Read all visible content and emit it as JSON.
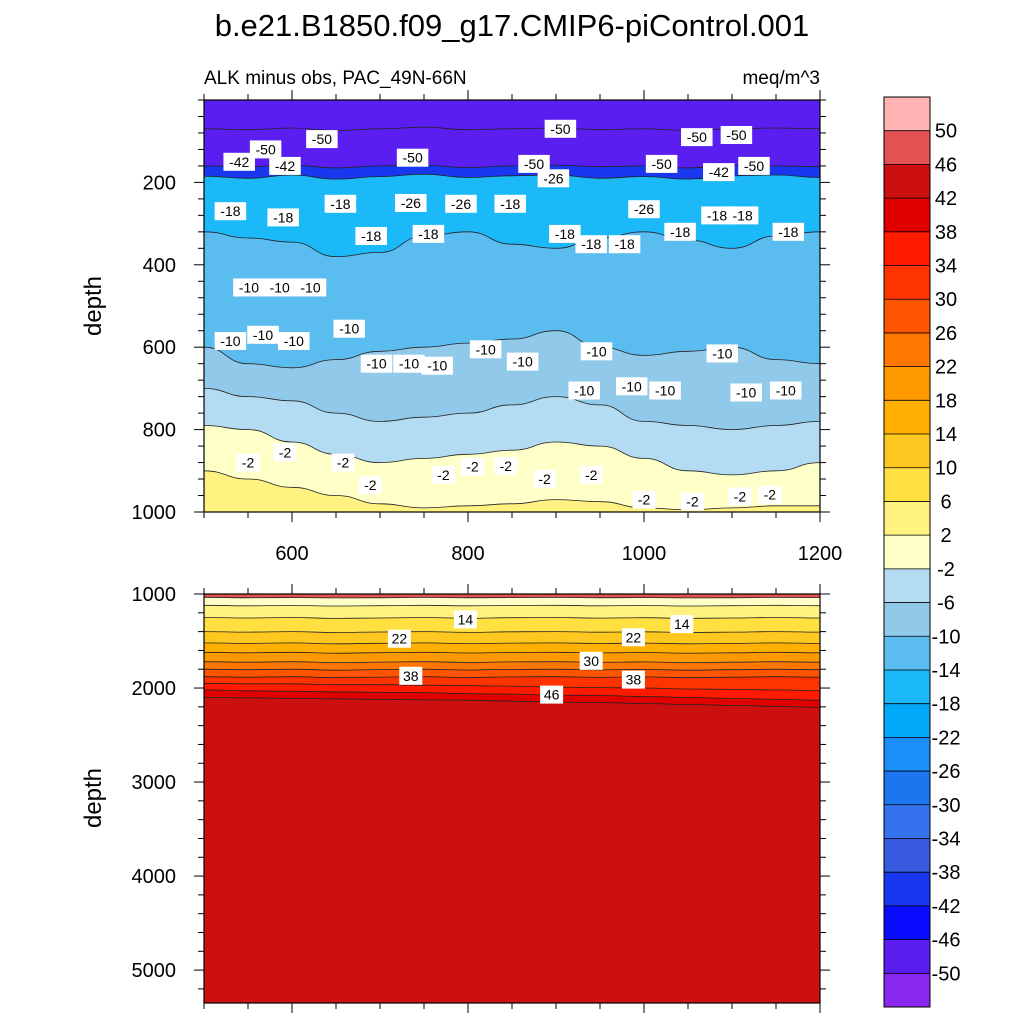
{
  "figure": {
    "title": "b.e21.B1850.f09_g17.CMIP6-piControl.001",
    "left_subtitle": "ALK minus obs, PAC_49N-66N",
    "right_subtitle": "meq/m^3"
  },
  "colorbar": {
    "levels": [
      "50",
      "46",
      "42",
      "38",
      "34",
      "30",
      "26",
      "22",
      "18",
      "14",
      "10",
      "6",
      "2",
      "-2",
      "-6",
      "-10",
      "-14",
      "-18",
      "-22",
      "-26",
      "-30",
      "-34",
      "-38",
      "-42",
      "-46",
      "-50"
    ],
    "colors": [
      "#ffb3b3",
      "#e35252",
      "#cc1010",
      "#e00000",
      "#ff1a00",
      "#ff3300",
      "#ff5500",
      "#ff7700",
      "#ff9900",
      "#ffb000",
      "#ffc820",
      "#ffe040",
      "#fff280",
      "#ffffc8",
      "#b3dcf2",
      "#91c9ea",
      "#5bbcf0",
      "#1cb9f8",
      "#00a8f7",
      "#1a8ff8",
      "#1e75f0",
      "#3573ee",
      "#375ae0",
      "#1a37f0",
      "#0a0aff",
      "#5a1ef0",
      "#8a28f0"
    ]
  },
  "chart_data": [
    {
      "type": "contour",
      "panel": "upper",
      "x": [
        500,
        550,
        600,
        650,
        700,
        750,
        800,
        850,
        900,
        950,
        1000,
        1050,
        1100,
        1150,
        1200
      ],
      "xlim": [
        500,
        1200
      ],
      "ylim": [
        1000,
        0
      ],
      "ylabel": "depth",
      "x_ticks": [
        "600",
        "800",
        "1000",
        "1200"
      ],
      "y_ticks": [
        "200",
        "400",
        "600",
        "800",
        "1000"
      ],
      "contour_boundaries": [
        {
          "level": -46,
          "depth": [
            70,
            72,
            68,
            74,
            70,
            66,
            72,
            70,
            68,
            72,
            70,
            74,
            70,
            68,
            70
          ]
        },
        {
          "level": -50,
          "depth": [
            160,
            162,
            158,
            165,
            160,
            158,
            164,
            160,
            158,
            162,
            160,
            165,
            158,
            160,
            162
          ]
        },
        {
          "level": -42,
          "depth": [
            185,
            190,
            182,
            192,
            186,
            180,
            188,
            184,
            182,
            190,
            186,
            192,
            184,
            182,
            188
          ]
        },
        {
          "level": -18,
          "depth": [
            320,
            335,
            345,
            380,
            370,
            330,
            320,
            350,
            360,
            335,
            320,
            340,
            360,
            330,
            320
          ]
        },
        {
          "level": -10,
          "depth": [
            600,
            640,
            650,
            630,
            610,
            600,
            590,
            580,
            560,
            600,
            620,
            610,
            600,
            630,
            640
          ]
        },
        {
          "level": -6,
          "depth": [
            700,
            720,
            730,
            760,
            780,
            770,
            760,
            740,
            720,
            740,
            780,
            790,
            800,
            790,
            780
          ]
        },
        {
          "level": -2,
          "depth": [
            790,
            800,
            830,
            860,
            880,
            870,
            860,
            850,
            830,
            840,
            870,
            900,
            910,
            900,
            880
          ]
        },
        {
          "level": 2,
          "depth": [
            900,
            920,
            940,
            960,
            980,
            990,
            985,
            980,
            970,
            975,
            990,
            995,
            990,
            985,
            985
          ]
        }
      ],
      "contour_labels": [
        {
          "text": "-50",
          "x": 570,
          "y": 120
        },
        {
          "text": "-50",
          "x": 634,
          "y": 95
        },
        {
          "text": "-50",
          "x": 737,
          "y": 140
        },
        {
          "text": "-50",
          "x": 875,
          "y": 155
        },
        {
          "text": "-50",
          "x": 905,
          "y": 70
        },
        {
          "text": "-50",
          "x": 1020,
          "y": 155
        },
        {
          "text": "-50",
          "x": 1060,
          "y": 90
        },
        {
          "text": "-50",
          "x": 1105,
          "y": 85
        },
        {
          "text": "-50",
          "x": 1125,
          "y": 160
        },
        {
          "text": "-42",
          "x": 540,
          "y": 150
        },
        {
          "text": "-42",
          "x": 592,
          "y": 160
        },
        {
          "text": "-42",
          "x": 1085,
          "y": 175
        },
        {
          "text": "-26",
          "x": 735,
          "y": 250
        },
        {
          "text": "-26",
          "x": 792,
          "y": 252
        },
        {
          "text": "-26",
          "x": 897,
          "y": 190
        },
        {
          "text": "-26",
          "x": 1000,
          "y": 265
        },
        {
          "text": "-18",
          "x": 530,
          "y": 270
        },
        {
          "text": "-18",
          "x": 590,
          "y": 285
        },
        {
          "text": "-18",
          "x": 655,
          "y": 252
        },
        {
          "text": "-18",
          "x": 690,
          "y": 330
        },
        {
          "text": "-18",
          "x": 755,
          "y": 325
        },
        {
          "text": "-18",
          "x": 848,
          "y": 252
        },
        {
          "text": "-18",
          "x": 910,
          "y": 325
        },
        {
          "text": "-18",
          "x": 940,
          "y": 350
        },
        {
          "text": "-18",
          "x": 978,
          "y": 350
        },
        {
          "text": "-18",
          "x": 1041,
          "y": 320
        },
        {
          "text": "-18",
          "x": 1083,
          "y": 280
        },
        {
          "text": "-18",
          "x": 1112,
          "y": 280
        },
        {
          "text": "-18",
          "x": 1164,
          "y": 320
        },
        {
          "text": "-10",
          "x": 551,
          "y": 455
        },
        {
          "text": "-10",
          "x": 586,
          "y": 455
        },
        {
          "text": "-10",
          "x": 621,
          "y": 455
        },
        {
          "text": "-10",
          "x": 530,
          "y": 585
        },
        {
          "text": "-10",
          "x": 567,
          "y": 570
        },
        {
          "text": "-10",
          "x": 602,
          "y": 585
        },
        {
          "text": "-10",
          "x": 665,
          "y": 555
        },
        {
          "text": "-10",
          "x": 696,
          "y": 640
        },
        {
          "text": "-10",
          "x": 733,
          "y": 640
        },
        {
          "text": "-10",
          "x": 765,
          "y": 645
        },
        {
          "text": "-10",
          "x": 820,
          "y": 605
        },
        {
          "text": "-10",
          "x": 862,
          "y": 635
        },
        {
          "text": "-10",
          "x": 932,
          "y": 705
        },
        {
          "text": "-10",
          "x": 946,
          "y": 610
        },
        {
          "text": "-10",
          "x": 986,
          "y": 695
        },
        {
          "text": "-10",
          "x": 1024,
          "y": 705
        },
        {
          "text": "-10",
          "x": 1089,
          "y": 615
        },
        {
          "text": "-10",
          "x": 1116,
          "y": 710
        },
        {
          "text": "-10",
          "x": 1161,
          "y": 705
        },
        {
          "text": "-2",
          "x": 550,
          "y": 880
        },
        {
          "text": "-2",
          "x": 592,
          "y": 855
        },
        {
          "text": "-2",
          "x": 658,
          "y": 880
        },
        {
          "text": "-2",
          "x": 689,
          "y": 935
        },
        {
          "text": "-2",
          "x": 772,
          "y": 910
        },
        {
          "text": "-2",
          "x": 805,
          "y": 890
        },
        {
          "text": "-2",
          "x": 843,
          "y": 888
        },
        {
          "text": "-2",
          "x": 887,
          "y": 920
        },
        {
          "text": "-2",
          "x": 940,
          "y": 910
        },
        {
          "text": "-2",
          "x": 1000,
          "y": 970
        },
        {
          "text": "-2",
          "x": 1055,
          "y": 975
        },
        {
          "text": "-2",
          "x": 1109,
          "y": 962
        },
        {
          "text": "-2",
          "x": 1143,
          "y": 958
        }
      ]
    },
    {
      "type": "contour",
      "panel": "lower",
      "x": [
        500,
        550,
        600,
        650,
        700,
        750,
        800,
        850,
        900,
        950,
        1000,
        1050,
        1100,
        1150,
        1200
      ],
      "xlim": [
        500,
        1200
      ],
      "ylim": [
        5350,
        1000
      ],
      "ylabel": "depth",
      "y_ticks": [
        "1000",
        "2000",
        "3000",
        "4000",
        "5000"
      ],
      "contour_boundaries": [
        {
          "level": 2,
          "depth": [
            1035,
            1040,
            1038,
            1042,
            1040,
            1036,
            1040,
            1038,
            1036,
            1040,
            1038,
            1042,
            1040,
            1036,
            1038
          ]
        },
        {
          "level": 6,
          "depth": [
            1120,
            1125,
            1122,
            1128,
            1124,
            1120,
            1126,
            1122,
            1120,
            1125,
            1122,
            1128,
            1124,
            1120,
            1124
          ]
        },
        {
          "level": 10,
          "depth": [
            1250,
            1255,
            1250,
            1260,
            1255,
            1250,
            1258,
            1252,
            1250,
            1256,
            1252,
            1260,
            1255,
            1250,
            1255
          ]
        },
        {
          "level": 14,
          "depth": [
            1400,
            1405,
            1400,
            1410,
            1404,
            1400,
            1408,
            1402,
            1400,
            1406,
            1402,
            1410,
            1405,
            1400,
            1405
          ]
        },
        {
          "level": 18,
          "depth": [
            1520,
            1525,
            1520,
            1530,
            1524,
            1520,
            1528,
            1522,
            1520,
            1526,
            1522,
            1530,
            1525,
            1520,
            1525
          ]
        },
        {
          "level": 22,
          "depth": [
            1620,
            1625,
            1620,
            1630,
            1624,
            1620,
            1628,
            1622,
            1620,
            1626,
            1622,
            1630,
            1625,
            1620,
            1625
          ]
        },
        {
          "level": 26,
          "depth": [
            1720,
            1725,
            1720,
            1730,
            1724,
            1720,
            1728,
            1722,
            1720,
            1726,
            1722,
            1730,
            1725,
            1720,
            1725
          ]
        },
        {
          "level": 30,
          "depth": [
            1800,
            1805,
            1800,
            1810,
            1804,
            1800,
            1808,
            1802,
            1800,
            1806,
            1802,
            1810,
            1805,
            1800,
            1805
          ]
        },
        {
          "level": 34,
          "depth": [
            1880,
            1885,
            1880,
            1890,
            1884,
            1880,
            1888,
            1882,
            1880,
            1886,
            1882,
            1890,
            1885,
            1880,
            1885
          ]
        },
        {
          "level": 38,
          "depth": [
            1950,
            1955,
            1955,
            1965,
            1965,
            1970,
            1975,
            1980,
            1990,
            1995,
            2000,
            2010,
            2015,
            2020,
            2030
          ]
        },
        {
          "level": 42,
          "depth": [
            2020,
            2030,
            2035,
            2040,
            2045,
            2050,
            2060,
            2065,
            2075,
            2080,
            2090,
            2100,
            2110,
            2120,
            2130
          ]
        },
        {
          "level": 46,
          "depth": [
            2100,
            2105,
            2110,
            2115,
            2120,
            2125,
            2130,
            2140,
            2150,
            2155,
            2165,
            2175,
            2185,
            2195,
            2205
          ]
        }
      ],
      "contour_labels": [
        {
          "text": "14",
          "x": 797,
          "y": 1270
        },
        {
          "text": "14",
          "x": 1043,
          "y": 1320
        },
        {
          "text": "22",
          "x": 722,
          "y": 1475
        },
        {
          "text": "22",
          "x": 988,
          "y": 1460
        },
        {
          "text": "30",
          "x": 940,
          "y": 1710
        },
        {
          "text": "38",
          "x": 735,
          "y": 1870
        },
        {
          "text": "38",
          "x": 988,
          "y": 1910
        },
        {
          "text": "46",
          "x": 895,
          "y": 2070
        }
      ]
    }
  ]
}
